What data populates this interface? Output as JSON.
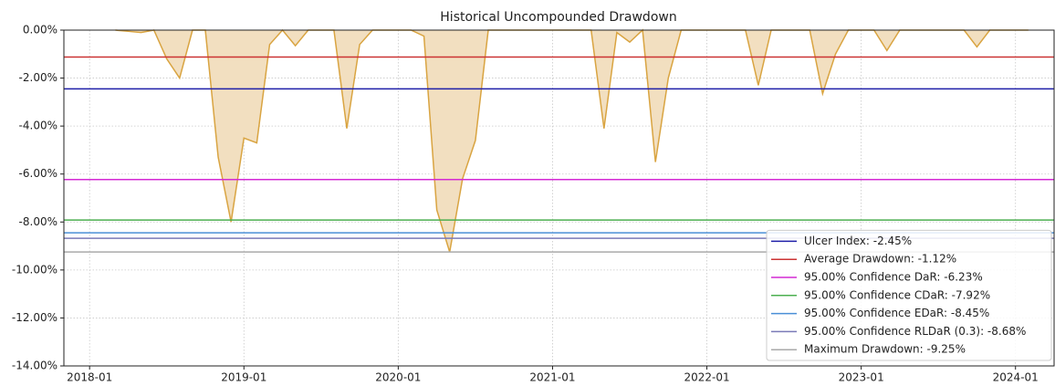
{
  "chart_data": {
    "type": "area",
    "title": "Historical Uncompounded Drawdown",
    "color": "#f2dfc0",
    "line_color": "#d9a441",
    "grid": true,
    "legend": "lower right",
    "x": [
      "2018-03",
      "2018-04",
      "2018-05",
      "2018-06",
      "2018-07",
      "2018-08",
      "2018-09",
      "2018-10",
      "2018-11",
      "2018-12",
      "2019-01",
      "2019-02",
      "2019-03",
      "2019-04",
      "2019-05",
      "2019-06",
      "2019-07",
      "2019-08",
      "2019-09",
      "2019-10",
      "2019-11",
      "2019-12",
      "2020-01",
      "2020-02",
      "2020-03",
      "2020-04",
      "2020-05",
      "2020-06",
      "2020-07",
      "2020-08",
      "2020-09",
      "2020-10",
      "2020-11",
      "2020-12",
      "2021-01",
      "2021-02",
      "2021-03",
      "2021-04",
      "2021-05",
      "2021-06",
      "2021-07",
      "2021-08",
      "2021-09",
      "2021-10",
      "2021-11",
      "2021-12",
      "2022-01",
      "2022-02",
      "2022-03",
      "2022-04",
      "2022-05",
      "2022-06",
      "2022-07",
      "2022-08",
      "2022-09",
      "2022-10",
      "2022-11",
      "2022-12",
      "2023-01",
      "2023-02",
      "2023-03",
      "2023-04",
      "2023-05",
      "2023-06",
      "2023-07",
      "2023-08",
      "2023-09",
      "2023-10",
      "2023-11",
      "2023-12",
      "2024-01",
      "2024-02"
    ],
    "values": [
      0,
      -0.05,
      -0.1,
      0,
      -1.2,
      -2.0,
      0,
      0,
      -5.3,
      -8.0,
      -4.5,
      -4.7,
      -0.6,
      0,
      -0.65,
      0,
      0,
      0,
      -4.1,
      -0.6,
      0,
      0,
      0,
      0,
      -0.25,
      -7.5,
      -9.25,
      -6.2,
      -4.6,
      0,
      0,
      0,
      0,
      0,
      0,
      0,
      0,
      0,
      -4.1,
      -0.1,
      -0.5,
      0,
      -5.5,
      -2.0,
      0,
      0,
      0,
      0,
      0,
      0,
      -2.3,
      0,
      0,
      0,
      0,
      -2.65,
      -1.0,
      0,
      0,
      0,
      -0.85,
      0,
      0,
      0,
      0,
      0,
      0,
      -0.7,
      0,
      0,
      0,
      0
    ],
    "xlim": [
      "2017-11",
      "2024-04"
    ],
    "xticks": [
      "2018-01",
      "2019-01",
      "2020-01",
      "2021-01",
      "2022-01",
      "2023-01",
      "2024-01"
    ],
    "ylim": [
      -14,
      0
    ],
    "yticks": [
      {
        "value": 0,
        "label": "0.00%"
      },
      {
        "value": -2,
        "label": "-2.00%"
      },
      {
        "value": -4,
        "label": "-4.00%"
      },
      {
        "value": -6,
        "label": "-6.00%"
      },
      {
        "value": -8,
        "label": "-8.00%"
      },
      {
        "value": -10,
        "label": "-10.00%"
      },
      {
        "value": -12,
        "label": "-12.00%"
      },
      {
        "value": -14,
        "label": "-14.00%"
      }
    ],
    "hlines": [
      {
        "name": "Ulcer Index: -2.45%",
        "color": "#1f1fa8",
        "value": -2.45
      },
      {
        "name": "Average Drawdown: -1.12%",
        "color": "#cc3333",
        "value": -1.12
      },
      {
        "name": "95.00% Confidence DaR: -6.23%",
        "color": "#d42ad4",
        "value": -6.23
      },
      {
        "name": "95.00% Confidence CDaR: -7.92%",
        "color": "#4caf50",
        "value": -7.92
      },
      {
        "name": "95.00% Confidence EDaR: -8.45%",
        "color": "#4a8fd6",
        "value": -8.45
      },
      {
        "name": "95.00% Confidence RLDaR (0.3): -8.68%",
        "color": "#7a7ab8",
        "value": -8.68
      },
      {
        "name": "Maximum Drawdown: -9.25%",
        "color": "#aaaaaa",
        "value": -9.25
      }
    ]
  }
}
